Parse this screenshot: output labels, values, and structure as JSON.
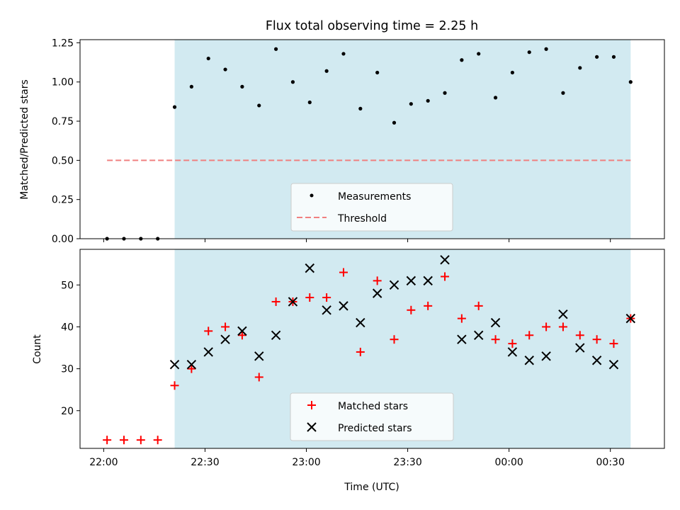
{
  "chart_data": [
    {
      "type": "scatter",
      "title": "Flux total observing time = 2.25 h",
      "xlabel": "",
      "ylabel": "Matched/Predicted stars",
      "xlim": [
        "21:53",
        "00:46"
      ],
      "ylim": [
        0,
        1.27
      ],
      "yticks": [
        "0.00",
        "0.25",
        "0.50",
        "0.75",
        "1.00",
        "1.25"
      ],
      "shaded_span": [
        "22:21",
        "00:36"
      ],
      "shaded_color": "#add8e6",
      "grid": false,
      "legend_position": "bottom-center",
      "series": [
        {
          "name": "Measurements",
          "marker": "dot",
          "color": "#000000",
          "x": [
            "22:01",
            "22:06",
            "22:11",
            "22:16",
            "22:21",
            "22:26",
            "22:31",
            "22:36",
            "22:41",
            "22:46",
            "22:51",
            "22:56",
            "23:01",
            "23:06",
            "23:11",
            "23:16",
            "23:21",
            "23:26",
            "23:31",
            "23:36",
            "23:41",
            "23:46",
            "23:51",
            "23:56",
            "00:01",
            "00:06",
            "00:11",
            "00:16",
            "00:21",
            "00:26",
            "00:31",
            "00:36"
          ],
          "y": [
            0,
            0,
            0,
            0,
            0.84,
            0.97,
            1.15,
            1.08,
            0.97,
            0.85,
            1.21,
            1.0,
            0.87,
            1.07,
            1.18,
            0.83,
            1.06,
            0.74,
            0.86,
            0.88,
            0.93,
            1.14,
            1.18,
            0.9,
            1.06,
            1.19,
            1.21,
            0.93,
            1.09,
            1.16,
            1.16,
            1.0
          ]
        },
        {
          "name": "Threshold",
          "style": "dashed",
          "color": "#f08080",
          "x": [
            "22:01",
            "00:36"
          ],
          "y": [
            0.5,
            0.5
          ]
        }
      ]
    },
    {
      "type": "scatter",
      "title": "",
      "xlabel": "Time (UTC)",
      "ylabel": "Count",
      "xlim": [
        "21:53",
        "00:46"
      ],
      "ylim": [
        11,
        58.5
      ],
      "yticks": [
        "20",
        "30",
        "40",
        "50"
      ],
      "xticks": [
        "22:00",
        "22:30",
        "23:00",
        "23:30",
        "00:00",
        "00:30"
      ],
      "shaded_span": [
        "22:21",
        "00:36"
      ],
      "shaded_color": "#add8e6",
      "grid": false,
      "legend_position": "bottom-center",
      "series": [
        {
          "name": "Matched stars",
          "marker": "plus",
          "color": "#ff0000",
          "x": [
            "22:01",
            "22:06",
            "22:11",
            "22:16",
            "22:21",
            "22:26",
            "22:31",
            "22:36",
            "22:41",
            "22:46",
            "22:51",
            "22:56",
            "23:01",
            "23:06",
            "23:11",
            "23:16",
            "23:21",
            "23:26",
            "23:31",
            "23:36",
            "23:41",
            "23:46",
            "23:51",
            "23:56",
            "00:01",
            "00:06",
            "00:11",
            "00:16",
            "00:21",
            "00:26",
            "00:31",
            "00:36"
          ],
          "y": [
            13,
            13,
            13,
            13,
            26,
            30,
            39,
            40,
            38,
            28,
            46,
            46,
            47,
            47,
            53,
            34,
            51,
            37,
            44,
            45,
            52,
            42,
            45,
            37,
            36,
            38,
            40,
            40,
            38,
            37,
            36,
            42
          ]
        },
        {
          "name": "Predicted stars",
          "marker": "x",
          "color": "#000000",
          "x": [
            "22:21",
            "22:26",
            "22:31",
            "22:36",
            "22:41",
            "22:46",
            "22:51",
            "22:56",
            "23:01",
            "23:06",
            "23:11",
            "23:16",
            "23:21",
            "23:26",
            "23:31",
            "23:36",
            "23:41",
            "23:46",
            "23:51",
            "23:56",
            "00:01",
            "00:06",
            "00:11",
            "00:16",
            "00:21",
            "00:26",
            "00:31",
            "00:36"
          ],
          "y": [
            31,
            31,
            34,
            37,
            39,
            33,
            38,
            46,
            54,
            44,
            45,
            41,
            48,
            50,
            51,
            51,
            56,
            37,
            38,
            41,
            34,
            32,
            33,
            43,
            35,
            32,
            31,
            42
          ]
        }
      ]
    }
  ]
}
